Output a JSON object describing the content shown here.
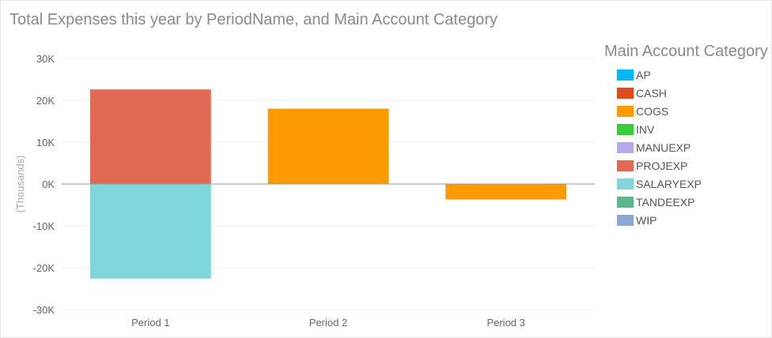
{
  "chart_data": {
    "type": "bar",
    "stacked": true,
    "title": "Total Expenses this year by PeriodName, and Main Account Category",
    "xlabel": "",
    "ylabel": "(Thousands)",
    "categories": [
      "Period 1",
      "Period 2",
      "Period 3"
    ],
    "ylim": [
      -30,
      30
    ],
    "yticks": [
      30,
      20,
      10,
      0,
      -10,
      -20,
      -30
    ],
    "ytick_labels": [
      "30K",
      "20K",
      "10K",
      "0K",
      "-10K",
      "-20K",
      "-30K"
    ],
    "grid": true,
    "legend": {
      "title": "Main Account Category",
      "position": "right",
      "items": [
        {
          "name": "AP",
          "color": "#01B8F4"
        },
        {
          "name": "CASH",
          "color": "#E04A1F"
        },
        {
          "name": "COGS",
          "color": "#FD9A00"
        },
        {
          "name": "INV",
          "color": "#3ACB3A"
        },
        {
          "name": "MANUEXP",
          "color": "#B9A8E8"
        },
        {
          "name": "PROJEXP",
          "color": "#E06A53"
        },
        {
          "name": "SALARYEXP",
          "color": "#80D6DC"
        },
        {
          "name": "TANDEEXP",
          "color": "#5EB78A"
        },
        {
          "name": "WIP",
          "color": "#8DA8D0"
        }
      ]
    },
    "series": [
      {
        "name": "PROJEXP",
        "color": "#E06A53",
        "values": [
          22.6,
          0,
          0
        ]
      },
      {
        "name": "SALARYEXP",
        "color": "#80D6DC",
        "values": [
          -22.6,
          0,
          0
        ]
      },
      {
        "name": "COGS",
        "color": "#FD9A00",
        "values": [
          0,
          18.0,
          -3.7
        ]
      }
    ]
  }
}
